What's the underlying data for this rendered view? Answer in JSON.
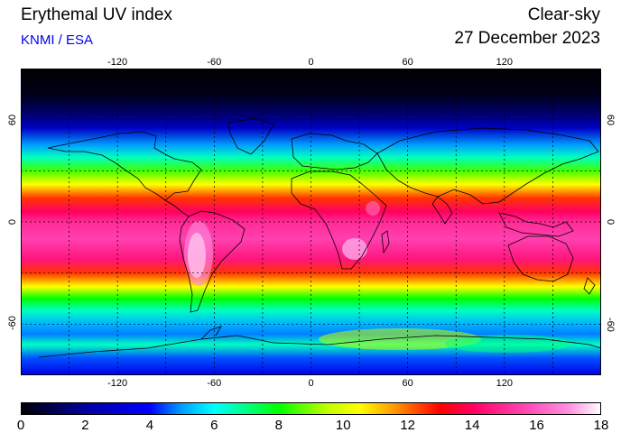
{
  "header": {
    "title": "Erythemal UV index",
    "credit": "KNMI / ESA",
    "product": "Clear-sky",
    "date": "27 December 2023"
  },
  "colors": {
    "credit": "#0000ee",
    "coast": "#000000",
    "grid": "#000000"
  },
  "map": {
    "projection": "equirectangular",
    "lon_range": [
      -180,
      180
    ],
    "lat_range": [
      -90,
      90
    ],
    "gridlines": "dashed every 30 degrees",
    "lon_ticks": [
      "-120",
      "-60",
      "0",
      "60",
      "120"
    ],
    "lon_tick_values": [
      -120,
      -60,
      0,
      60,
      120
    ],
    "lat_ticks": [
      "60",
      "0",
      "-60"
    ],
    "lat_tick_values": [
      60,
      0,
      -60
    ]
  },
  "colorbar": {
    "min": 0,
    "max": 18,
    "labels": [
      "0",
      "2",
      "4",
      "6",
      "8",
      "10",
      "12",
      "14",
      "16",
      "18"
    ],
    "label_values": [
      0,
      2,
      4,
      6,
      8,
      10,
      12,
      14,
      16,
      18
    ],
    "stops": [
      {
        "v": 0,
        "c": "#000000"
      },
      {
        "v": 2,
        "c": "#0000a0"
      },
      {
        "v": 4,
        "c": "#0000ff"
      },
      {
        "v": 5,
        "c": "#00a0ff"
      },
      {
        "v": 6,
        "c": "#00ffff"
      },
      {
        "v": 7,
        "c": "#00ff80"
      },
      {
        "v": 8,
        "c": "#00ff00"
      },
      {
        "v": 9.5,
        "c": "#c0ff00"
      },
      {
        "v": 10.5,
        "c": "#ffff00"
      },
      {
        "v": 11.5,
        "c": "#ffa000"
      },
      {
        "v": 13,
        "c": "#ff0000"
      },
      {
        "v": 14,
        "c": "#ff0060"
      },
      {
        "v": 15.5,
        "c": "#ff40b0"
      },
      {
        "v": 17,
        "c": "#ff90e0"
      },
      {
        "v": 18,
        "c": "#ffffff"
      }
    ]
  }
}
